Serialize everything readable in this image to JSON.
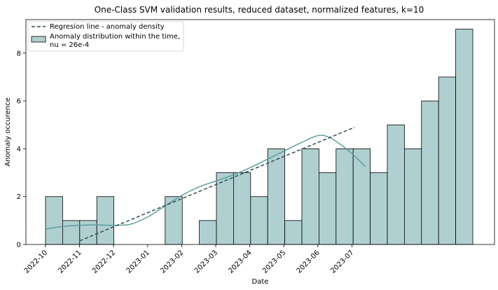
{
  "chart_data": {
    "type": "bar",
    "title": "One-Class SVM validation results, reduced dataset, normalized features, k=10",
    "xlabel": "Date",
    "ylabel": "Anomaly occurence",
    "ylim": [
      0,
      9.4
    ],
    "yticks": [
      0,
      2,
      4,
      6,
      8
    ],
    "xticks": [
      "2022-10",
      "2022-11",
      "2022-12",
      "2023-01",
      "2023-02",
      "2023-03",
      "2023-04",
      "2023-05",
      "2023-06",
      "2023-07"
    ],
    "grid": false,
    "legend_position": "top-left",
    "colors": {
      "bar_fill": "#b0cfd1",
      "bar_edge": "#000000",
      "kde_line": "#5f9ea0",
      "regression_line": "#2f4f4f"
    },
    "series": [
      {
        "name": "Anomaly distribution within the time,\nnu = 26e-4",
        "kind": "histogram",
        "bins": [
          {
            "start": "2022-10",
            "value": 2
          },
          {
            "start": "2022-10.37",
            "value": 1
          },
          {
            "start": "2022-10.74",
            "value": 1
          },
          {
            "start": "2022-11.11",
            "value": 2
          },
          {
            "start": "2022-11.48",
            "value": 0
          },
          {
            "start": "2022-11.85",
            "value": 0
          },
          {
            "start": "2022-12.22",
            "value": 0
          },
          {
            "start": "2022-12.59",
            "value": 2
          },
          {
            "start": "2022-12.96",
            "value": 0
          },
          {
            "start": "2023-01.33",
            "value": 1
          },
          {
            "start": "2023-01.70",
            "value": 3
          },
          {
            "start": "2023-02.07",
            "value": 3
          },
          {
            "start": "2023-02.44",
            "value": 2
          },
          {
            "start": "2023-02.81",
            "value": 4
          },
          {
            "start": "2023-03.18",
            "value": 1
          },
          {
            "start": "2023-03.55",
            "value": 4
          },
          {
            "start": "2023-03.92",
            "value": 3
          },
          {
            "start": "2023-04.29",
            "value": 4
          },
          {
            "start": "2023-04.66",
            "value": 4
          },
          {
            "start": "2023-05.03",
            "value": 3
          },
          {
            "start": "2023-05.40",
            "value": 5
          },
          {
            "start": "2023-05.77",
            "value": 4
          },
          {
            "start": "2023-06.14",
            "value": 6
          },
          {
            "start": "2023-06.51",
            "value": 7
          },
          {
            "start": "2023-06.88",
            "value": 9
          }
        ]
      },
      {
        "name": "Regresion line - anomaly density",
        "kind": "line",
        "x": [
          1.0,
          9.08
        ],
        "y": [
          0.15,
          4.9
        ]
      },
      {
        "name": "kde",
        "kind": "line",
        "x": [
          0,
          0.5,
          1.0,
          1.5,
          2.0,
          2.5,
          3.0,
          3.5,
          4.0,
          4.5,
          5.0,
          5.5,
          6.0,
          6.5,
          7.0,
          7.5,
          8.0,
          8.3,
          8.6,
          9.0,
          9.4
        ],
        "y": [
          0.65,
          0.75,
          0.8,
          0.82,
          0.8,
          0.85,
          1.15,
          1.6,
          2.05,
          2.4,
          2.65,
          2.9,
          3.2,
          3.55,
          3.9,
          4.25,
          4.55,
          4.5,
          4.25,
          3.8,
          3.25
        ]
      }
    ]
  }
}
